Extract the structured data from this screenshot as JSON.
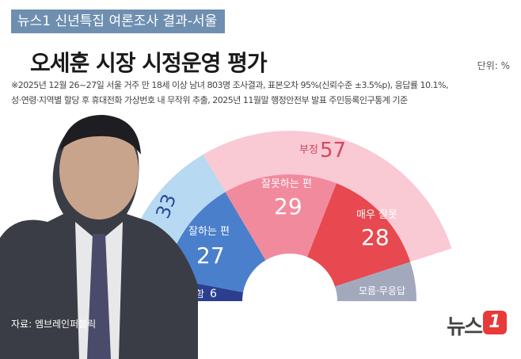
{
  "header": {
    "badge": "뉴스1 신년특집 여론조사 결과-서울",
    "title": "오세훈 시장 시정운영 평가",
    "unit": "단위: %",
    "note_line1": "※2025년 12월 26~27일 서울 거주 만 18세 이상 남녀 803명 조사결과, 표본오차 95%(신뢰수준 ±3.5%p), 응답률 10.1%,",
    "note_line2": "성·연령·지역별 할당 후 휴대전화 가상번호 내 무작위 추출, 2025년 11월말 행정안전부 발표 주민등록인구통계 기준"
  },
  "footer": {
    "source": "자료: 엠브레인퍼블릭",
    "logo_text": "뉴스",
    "logo_mark": "1"
  },
  "chart_data": {
    "type": "pie",
    "subtype": "nested-semicircle",
    "outer": [
      {
        "name": "긍정",
        "value": 33,
        "color": "#b7d9f2"
      },
      {
        "name": "부정",
        "value": 57,
        "color": "#f9c9d4"
      },
      {
        "name": "",
        "value": 10,
        "color": "#ffffff"
      }
    ],
    "inner": [
      {
        "name": "매우 잘함",
        "value": 6,
        "color": "#2c3f8f"
      },
      {
        "name": "잘하는 편",
        "value": 27,
        "color": "#4a7fcb"
      },
      {
        "name": "잘못하는 편",
        "value": 29,
        "color": "#f28a9e"
      },
      {
        "name": "매우 잘못",
        "value": 28,
        "color": "#e8484f"
      },
      {
        "name": "모름·무응답",
        "value": 10,
        "color": "#a3a9bd"
      }
    ],
    "labels": {
      "positive_name": "긍정",
      "positive_value": "33",
      "negative_name": "부정",
      "negative_value": "57",
      "very_good_name": "매우 잘함",
      "very_good_value": "6",
      "good_name": "잘하는 편",
      "good_value": "27",
      "bad_name": "잘못하는 편",
      "bad_value": "29",
      "very_bad_name": "매우 잘못",
      "very_bad_value": "28",
      "dk_name": "모름·무응답",
      "dk_value": "10"
    }
  }
}
